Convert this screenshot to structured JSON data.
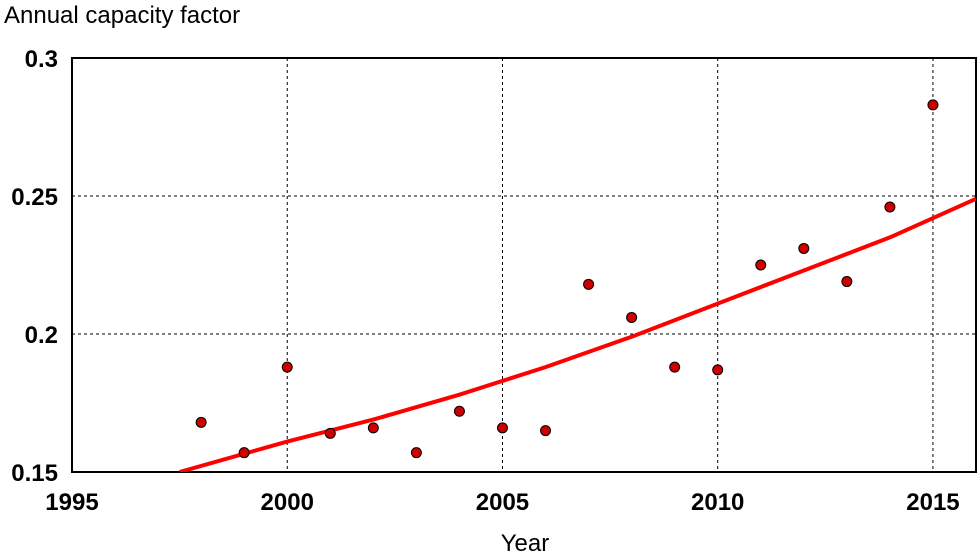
{
  "chart_data": {
    "type": "scatter",
    "title": "",
    "ylabel": "Annual capacity factor",
    "xlabel": "Year",
    "xlim": [
      1995,
      2016
    ],
    "ylim": [
      0.15,
      0.3
    ],
    "x_ticks": [
      1995,
      2000,
      2005,
      2010,
      2015
    ],
    "x_tick_labels": [
      "1995",
      "2000",
      "2005",
      "2010",
      "2015"
    ],
    "y_ticks": [
      0.15,
      0.2,
      0.25,
      0.3
    ],
    "y_tick_labels": [
      "0.15",
      "0.2",
      "0.25",
      "0.3"
    ],
    "grid": true,
    "colors": {
      "points": "#cc0000",
      "trend": "#ff0000",
      "grid": "#000000"
    },
    "series": [
      {
        "type": "scatter",
        "x": [
          1998,
          1999,
          2000,
          2001,
          2002,
          2003,
          2004,
          2005,
          2006,
          2007,
          2008,
          2009,
          2010,
          2011,
          2012,
          2013,
          2014,
          2015
        ],
        "y": [
          0.168,
          0.157,
          0.188,
          0.164,
          0.166,
          0.157,
          0.172,
          0.166,
          0.165,
          0.218,
          0.206,
          0.188,
          0.187,
          0.225,
          0.231,
          0.219,
          0.246,
          0.283
        ]
      },
      {
        "type": "line",
        "x": [
          1997.5,
          2000,
          2002,
          2004,
          2006,
          2008,
          2010,
          2012,
          2014,
          2016
        ],
        "y": [
          0.15,
          0.161,
          0.169,
          0.178,
          0.188,
          0.199,
          0.211,
          0.223,
          0.235,
          0.249
        ]
      }
    ]
  }
}
